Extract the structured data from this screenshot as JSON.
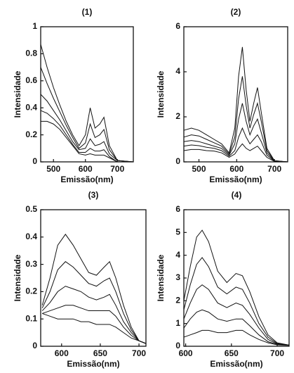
{
  "chart_data": [
    {
      "type": "line",
      "title": "(1)",
      "xlabel": "Emissão(nm)",
      "ylabel": "Intensidade",
      "x": [
        460,
        480,
        500,
        520,
        540,
        560,
        580,
        600,
        615,
        630,
        645,
        658,
        675,
        700,
        750
      ],
      "series": [
        {
          "color": "#111111",
          "values": [
            0.87,
            0.7,
            0.55,
            0.42,
            0.3,
            0.2,
            0.12,
            0.2,
            0.4,
            0.25,
            0.28,
            0.33,
            0.12,
            0.01,
            0
          ]
        },
        {
          "color": "#111111",
          "values": [
            0.7,
            0.58,
            0.47,
            0.37,
            0.27,
            0.18,
            0.1,
            0.14,
            0.28,
            0.18,
            0.2,
            0.24,
            0.09,
            0.01,
            0
          ]
        },
        {
          "color": "#111111",
          "values": [
            0.5,
            0.45,
            0.38,
            0.31,
            0.23,
            0.15,
            0.09,
            0.1,
            0.17,
            0.12,
            0.13,
            0.15,
            0.06,
            0.01,
            0
          ]
        },
        {
          "color": "#111111",
          "values": [
            0.38,
            0.36,
            0.32,
            0.27,
            0.2,
            0.13,
            0.07,
            0.07,
            0.1,
            0.08,
            0.08,
            0.09,
            0.04,
            0,
            0
          ]
        },
        {
          "color": "#111111",
          "values": [
            0.3,
            0.3,
            0.28,
            0.24,
            0.18,
            0.12,
            0.06,
            0.05,
            0.06,
            0.05,
            0.05,
            0.05,
            0.03,
            0,
            0
          ]
        }
      ],
      "xlim": [
        460,
        750
      ],
      "xticks": [
        500,
        600,
        700
      ],
      "ylim": [
        0,
        1
      ],
      "yticks": [
        0,
        0.2,
        0.4,
        0.6,
        0.8,
        1
      ]
    },
    {
      "type": "line",
      "title": "(2)",
      "xlabel": "Emissão(nm)",
      "ylabel": "Intensidade",
      "x": [
        460,
        480,
        500,
        520,
        540,
        560,
        580,
        595,
        605,
        615,
        625,
        635,
        645,
        655,
        665,
        680,
        700,
        735
      ],
      "series": [
        {
          "color": "#111111",
          "values": [
            1.4,
            1.5,
            1.4,
            1.2,
            1.0,
            0.8,
            0.4,
            1.5,
            3.8,
            5.1,
            3.2,
            1.8,
            2.6,
            3.3,
            2.2,
            0.6,
            0.05,
            0
          ]
        },
        {
          "color": "#111111",
          "values": [
            1.1,
            1.2,
            1.15,
            1.0,
            0.85,
            0.7,
            0.35,
            1.1,
            2.8,
            3.8,
            2.5,
            1.5,
            2.1,
            2.6,
            1.8,
            0.5,
            0.05,
            0
          ]
        },
        {
          "color": "#111111",
          "values": [
            0.9,
            0.95,
            0.9,
            0.8,
            0.7,
            0.6,
            0.3,
            0.8,
            1.9,
            2.6,
            1.8,
            1.2,
            1.6,
            1.9,
            1.3,
            0.4,
            0.04,
            0
          ]
        },
        {
          "color": "#111111",
          "values": [
            0.7,
            0.75,
            0.72,
            0.65,
            0.6,
            0.5,
            0.25,
            0.5,
            1.1,
            1.5,
            1.1,
            0.8,
            1.0,
            1.2,
            0.9,
            0.3,
            0.03,
            0
          ]
        },
        {
          "color": "#111111",
          "values": [
            0.5,
            0.55,
            0.55,
            0.5,
            0.48,
            0.4,
            0.2,
            0.35,
            0.6,
            0.8,
            0.6,
            0.5,
            0.6,
            0.7,
            0.5,
            0.2,
            0.02,
            0
          ]
        }
      ],
      "xlim": [
        460,
        735
      ],
      "xticks": [
        500,
        600,
        700
      ],
      "ylim": [
        0,
        6
      ],
      "yticks": [
        0,
        2,
        4,
        6
      ]
    },
    {
      "type": "line",
      "title": "(3)",
      "xlabel": "Emissão(nm)",
      "ylabel": "Intensidade",
      "x": [
        575,
        585,
        595,
        605,
        615,
        625,
        635,
        645,
        655,
        662,
        670,
        680,
        690,
        700,
        709
      ],
      "series": [
        {
          "color": "#111111",
          "values": [
            0.15,
            0.25,
            0.37,
            0.41,
            0.37,
            0.32,
            0.27,
            0.26,
            0.29,
            0.31,
            0.25,
            0.15,
            0.07,
            0.02,
            0.01
          ]
        },
        {
          "color": "#111111",
          "values": [
            0.14,
            0.2,
            0.28,
            0.31,
            0.29,
            0.26,
            0.23,
            0.22,
            0.24,
            0.25,
            0.2,
            0.12,
            0.06,
            0.02,
            0.01
          ]
        },
        {
          "color": "#111111",
          "values": [
            0.13,
            0.16,
            0.2,
            0.22,
            0.21,
            0.2,
            0.18,
            0.17,
            0.18,
            0.19,
            0.15,
            0.09,
            0.05,
            0.02,
            0.01
          ]
        },
        {
          "color": "#111111",
          "values": [
            0.12,
            0.13,
            0.14,
            0.15,
            0.15,
            0.14,
            0.13,
            0.13,
            0.13,
            0.13,
            0.11,
            0.07,
            0.04,
            0.02,
            0.01
          ]
        },
        {
          "color": "#111111",
          "values": [
            0.12,
            0.11,
            0.1,
            0.1,
            0.1,
            0.09,
            0.09,
            0.08,
            0.08,
            0.08,
            0.07,
            0.05,
            0.03,
            0.02,
            0.01
          ]
        }
      ],
      "xlim": [
        573,
        709
      ],
      "xticks": [
        600,
        650,
        700
      ],
      "ylim": [
        0,
        0.5
      ],
      "yticks": [
        0,
        0.1,
        0.2,
        0.3,
        0.4,
        0.5
      ]
    },
    {
      "type": "line",
      "title": "(4)",
      "xlabel": "Emissão(nm)",
      "ylabel": "Intensidade",
      "x": [
        598,
        605,
        612,
        618,
        625,
        635,
        645,
        655,
        662,
        670,
        680,
        690,
        700,
        713
      ],
      "series": [
        {
          "color": "#111111",
          "values": [
            2.0,
            3.5,
            4.8,
            5.1,
            4.6,
            3.3,
            2.8,
            3.2,
            3.1,
            2.4,
            1.3,
            0.5,
            0.15,
            0.05
          ]
        },
        {
          "color": "#111111",
          "values": [
            1.6,
            2.7,
            3.6,
            3.9,
            3.5,
            2.6,
            2.3,
            2.6,
            2.5,
            1.9,
            1.0,
            0.4,
            0.12,
            0.05
          ]
        },
        {
          "color": "#111111",
          "values": [
            1.2,
            1.9,
            2.5,
            2.7,
            2.5,
            1.9,
            1.7,
            1.9,
            1.8,
            1.4,
            0.8,
            0.3,
            0.1,
            0.05
          ]
        },
        {
          "color": "#111111",
          "values": [
            0.8,
            1.2,
            1.5,
            1.6,
            1.5,
            1.2,
            1.1,
            1.2,
            1.2,
            0.9,
            0.5,
            0.2,
            0.08,
            0.05
          ]
        },
        {
          "color": "#111111",
          "values": [
            0.4,
            0.5,
            0.6,
            0.7,
            0.7,
            0.6,
            0.6,
            0.7,
            0.7,
            0.5,
            0.3,
            0.15,
            0.06,
            0.04
          ]
        }
      ],
      "xlim": [
        598,
        713
      ],
      "xticks": [
        600,
        650,
        700
      ],
      "ylim": [
        0,
        6
      ],
      "yticks": [
        0,
        1,
        2,
        3,
        4,
        5,
        6
      ]
    }
  ]
}
